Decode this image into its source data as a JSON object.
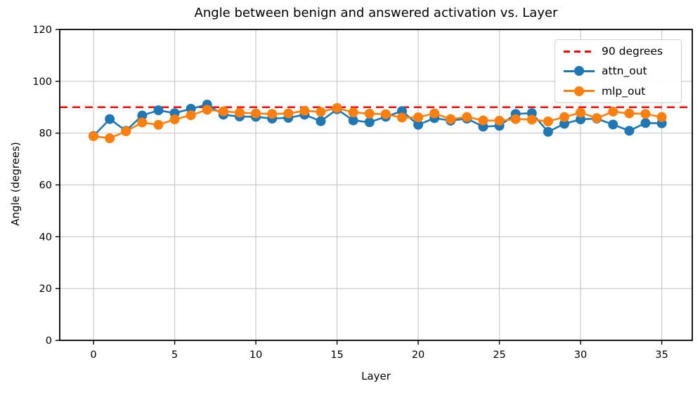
{
  "figure": {
    "title": "Angle between benign and answered activation vs. Layer",
    "xlabel": "Layer",
    "ylabel": "Angle (degrees)"
  },
  "chart_data": {
    "type": "line",
    "title": "Angle between benign and answered activation vs. Layer",
    "xlabel": "Layer",
    "ylabel": "Angle (degrees)",
    "xlim": [
      -2.08,
      36.88
    ],
    "ylim": [
      0,
      120
    ],
    "xticks": [
      0,
      5,
      10,
      15,
      20,
      25,
      30,
      35
    ],
    "yticks": [
      0,
      20,
      40,
      60,
      80,
      100,
      120
    ],
    "grid": true,
    "legend_position": "upper right",
    "grid_color": "#c9c9c9",
    "x": [
      0,
      1,
      2,
      3,
      4,
      5,
      6,
      7,
      8,
      9,
      10,
      11,
      12,
      13,
      14,
      15,
      16,
      17,
      18,
      19,
      20,
      21,
      22,
      23,
      24,
      25,
      26,
      27,
      28,
      29,
      30,
      31,
      32,
      33,
      34,
      35
    ],
    "series": [
      {
        "name": "attn_out",
        "color": "#1f77b4",
        "marker": "circle",
        "values": [
          78.9,
          85.4,
          80.9,
          86.8,
          88.8,
          87.7,
          89.4,
          91.0,
          87.1,
          86.4,
          86.3,
          85.6,
          85.9,
          87.1,
          84.6,
          89.2,
          84.9,
          84.2,
          86.3,
          88.5,
          83.2,
          85.8,
          84.8,
          85.6,
          82.5,
          82.8,
          87.4,
          87.7,
          80.5,
          83.6,
          85.3,
          85.6,
          83.3,
          80.9,
          83.9,
          83.8
        ]
      },
      {
        "name": "mlp_out",
        "color": "#ff7f0e",
        "marker": "circle",
        "values": [
          78.8,
          78.0,
          80.7,
          84.1,
          83.2,
          85.3,
          86.9,
          89.0,
          88.4,
          87.9,
          87.6,
          87.4,
          87.6,
          88.6,
          88.2,
          89.7,
          88.0,
          87.5,
          87.3,
          86.0,
          86.1,
          87.6,
          85.4,
          86.2,
          84.9,
          84.8,
          85.4,
          85.2,
          84.5,
          86.2,
          87.9,
          85.8,
          88.3,
          87.6,
          87.4,
          86.2
        ]
      }
    ],
    "reference_lines": [
      {
        "label": "90 degrees",
        "y": 90,
        "color": "#ff0000",
        "style": "dashed"
      }
    ]
  }
}
